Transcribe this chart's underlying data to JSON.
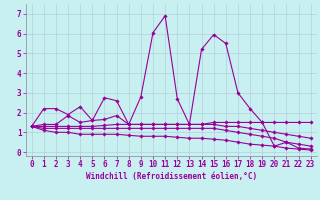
{
  "background_color": "#c8f0f0",
  "line_color": "#990099",
  "grid_color": "#b0c8d8",
  "xlim": [
    -0.5,
    23.5
  ],
  "ylim": [
    -0.2,
    7.5
  ],
  "xticks": [
    0,
    1,
    2,
    3,
    4,
    5,
    6,
    7,
    8,
    9,
    10,
    11,
    12,
    13,
    14,
    15,
    16,
    17,
    18,
    19,
    20,
    21,
    22,
    23
  ],
  "yticks": [
    0,
    1,
    2,
    3,
    4,
    5,
    6,
    7
  ],
  "xlabel": "Windchill (Refroidissement éolien,°C)",
  "lines": [
    {
      "x": [
        0,
        1,
        2,
        3,
        4,
        5,
        6,
        7,
        8,
        9,
        10,
        11,
        12,
        13,
        14,
        15,
        16,
        17,
        18,
        19,
        20,
        21,
        22,
        23
      ],
      "y": [
        1.3,
        2.2,
        2.2,
        1.9,
        2.3,
        1.6,
        2.75,
        2.6,
        1.4,
        2.8,
        6.05,
        6.9,
        2.7,
        1.4,
        5.2,
        5.95,
        5.5,
        3.0,
        2.2,
        1.5,
        0.3,
        0.5,
        0.2,
        0.15
      ]
    },
    {
      "x": [
        0,
        1,
        2,
        3,
        4,
        5,
        6,
        7,
        8,
        9,
        10,
        11,
        12,
        13,
        14,
        15,
        16,
        17,
        18,
        19,
        20,
        21,
        22,
        23
      ],
      "y": [
        1.3,
        1.4,
        1.4,
        1.85,
        1.5,
        1.6,
        1.65,
        1.85,
        1.4,
        1.4,
        1.4,
        1.4,
        1.4,
        1.4,
        1.4,
        1.5,
        1.5,
        1.5,
        1.5,
        1.5,
        1.5,
        1.5,
        1.5,
        1.5
      ]
    },
    {
      "x": [
        0,
        1,
        2,
        3,
        4,
        5,
        6,
        7,
        8,
        9,
        10,
        11,
        12,
        13,
        14,
        15,
        16,
        17,
        18,
        19,
        20,
        21,
        22,
        23
      ],
      "y": [
        1.3,
        1.3,
        1.3,
        1.3,
        1.3,
        1.3,
        1.35,
        1.4,
        1.4,
        1.4,
        1.4,
        1.4,
        1.4,
        1.4,
        1.4,
        1.4,
        1.3,
        1.3,
        1.2,
        1.1,
        1.0,
        0.9,
        0.8,
        0.7
      ]
    },
    {
      "x": [
        0,
        1,
        2,
        3,
        4,
        5,
        6,
        7,
        8,
        9,
        10,
        11,
        12,
        13,
        14,
        15,
        16,
        17,
        18,
        19,
        20,
        21,
        22,
        23
      ],
      "y": [
        1.3,
        1.2,
        1.2,
        1.2,
        1.2,
        1.2,
        1.2,
        1.2,
        1.2,
        1.2,
        1.2,
        1.2,
        1.2,
        1.2,
        1.2,
        1.2,
        1.1,
        1.0,
        0.9,
        0.8,
        0.7,
        0.5,
        0.4,
        0.3
      ]
    },
    {
      "x": [
        0,
        1,
        2,
        3,
        4,
        5,
        6,
        7,
        8,
        9,
        10,
        11,
        12,
        13,
        14,
        15,
        16,
        17,
        18,
        19,
        20,
        21,
        22,
        23
      ],
      "y": [
        1.3,
        1.1,
        1.0,
        1.0,
        0.9,
        0.9,
        0.9,
        0.9,
        0.85,
        0.8,
        0.8,
        0.8,
        0.75,
        0.7,
        0.7,
        0.65,
        0.6,
        0.5,
        0.4,
        0.35,
        0.3,
        0.2,
        0.15,
        0.1
      ]
    }
  ],
  "marker": "D",
  "marker_size": 1.8,
  "linewidth": 0.8,
  "tick_fontsize": 5.5,
  "xlabel_fontsize": 5.5
}
